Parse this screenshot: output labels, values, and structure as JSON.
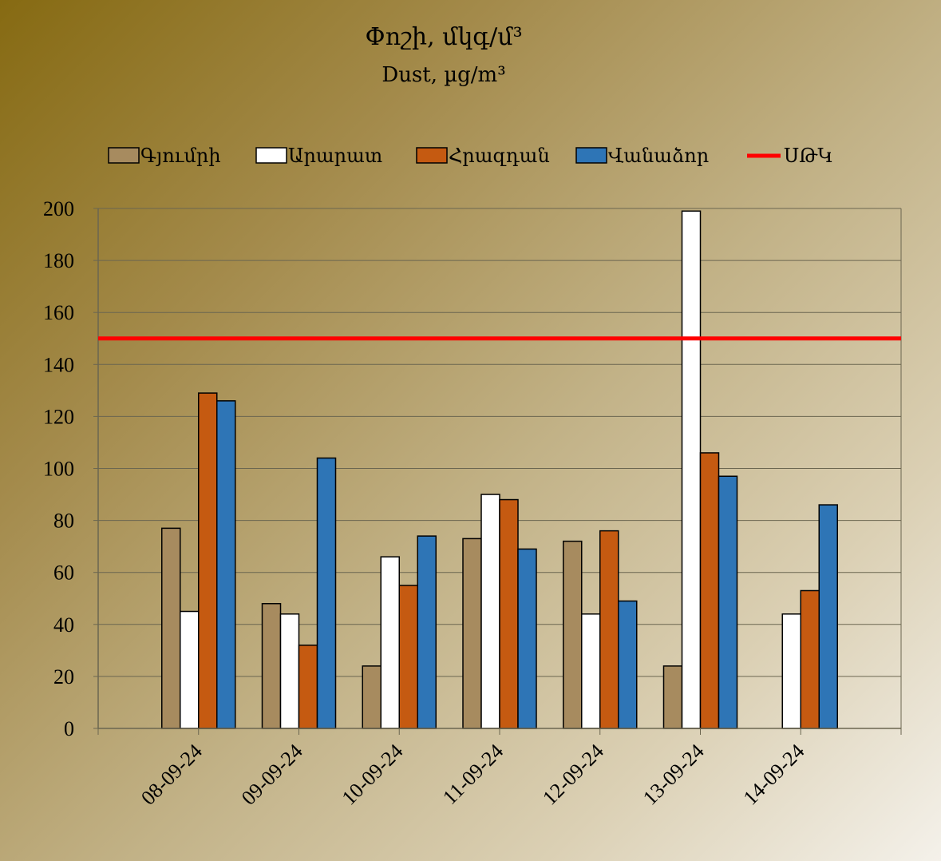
{
  "chart_data": {
    "type": "bar",
    "title": "Փոշի, մկգ/մ³",
    "subtitle": "Dust, µg/m³",
    "categories": [
      "08-09-24",
      "09-09-24",
      "10-09-24",
      "11-09-24",
      "12-09-24",
      "13-09-24",
      "14-09-24"
    ],
    "series": [
      {
        "name": "Գյումրի",
        "color": "#a78b5f",
        "values": [
          77,
          48,
          24,
          73,
          72,
          24,
          null
        ]
      },
      {
        "name": "Արարատ",
        "color": "#ffffff",
        "values": [
          45,
          44,
          66,
          90,
          44,
          199,
          44
        ]
      },
      {
        "name": "Հրազդան",
        "color": "#c55a11",
        "values": [
          129,
          32,
          55,
          88,
          76,
          106,
          53
        ]
      },
      {
        "name": "Վանաձոր",
        "color": "#2e75b6",
        "values": [
          126,
          104,
          74,
          69,
          49,
          97,
          86
        ]
      }
    ],
    "reference_line": {
      "name": "ՍԹԿ",
      "value": 150,
      "color": "#ff0000"
    },
    "ylim": [
      0,
      200
    ],
    "yticks": [
      0,
      20,
      40,
      60,
      80,
      100,
      120,
      140,
      160,
      180,
      200
    ],
    "grid": true,
    "legend_position": "top"
  }
}
